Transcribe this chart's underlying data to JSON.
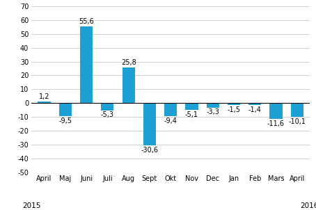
{
  "categories": [
    "April",
    "Maj",
    "Juni",
    "Juli",
    "Aug",
    "Sept",
    "Okt",
    "Nov",
    "Dec",
    "Jan",
    "Feb",
    "Mars",
    "April"
  ],
  "values": [
    1.2,
    -9.5,
    55.6,
    -5.3,
    25.8,
    -30.6,
    -9.4,
    -5.1,
    -3.3,
    -1.5,
    -1.4,
    -11.6,
    -10.1
  ],
  "bar_color": "#1da0d4",
  "ylim": [
    -50,
    70
  ],
  "yticks": [
    -50,
    -40,
    -30,
    -20,
    -10,
    0,
    10,
    20,
    30,
    40,
    50,
    60,
    70
  ],
  "year_left": "2015",
  "year_right": "2016",
  "label_fontsize": 7.0,
  "tick_fontsize": 7.0,
  "year_fontsize": 7.5,
  "background_color": "#ffffff",
  "grid_color": "#d0d0d0"
}
